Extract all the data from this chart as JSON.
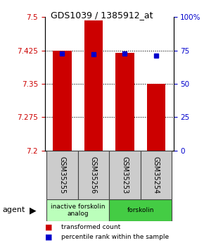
{
  "title": "GDS1039 / 1385912_at",
  "samples": [
    "GSM35255",
    "GSM35256",
    "GSM35253",
    "GSM35254"
  ],
  "bar_values": [
    7.425,
    7.492,
    7.42,
    7.35
  ],
  "blue_dot_values": [
    7.418,
    7.416,
    7.418,
    7.413
  ],
  "ymin": 7.2,
  "ymax": 7.5,
  "yticks": [
    7.2,
    7.275,
    7.35,
    7.425,
    7.5
  ],
  "ytick_labels": [
    "7.2",
    "7.275",
    "7.35",
    "7.425",
    "7.5"
  ],
  "right_yticks": [
    0,
    25,
    50,
    75,
    100
  ],
  "right_ytick_labels": [
    "0",
    "25",
    "50",
    "75",
    "100%"
  ],
  "bar_color": "#cc0000",
  "dot_color": "#0000cc",
  "bar_bottom": 7.2,
  "bar_width": 0.6,
  "left_tick_color": "#cc0000",
  "right_tick_color": "#0000cc",
  "group_spans": [
    [
      0,
      2,
      "inactive forskolin\nanalog",
      "#bbffbb"
    ],
    [
      2,
      4,
      "forskolin",
      "#44cc44"
    ]
  ],
  "legend_items": [
    {
      "color": "#cc0000",
      "label": "transformed count"
    },
    {
      "color": "#0000cc",
      "label": "percentile rank within the sample"
    }
  ]
}
